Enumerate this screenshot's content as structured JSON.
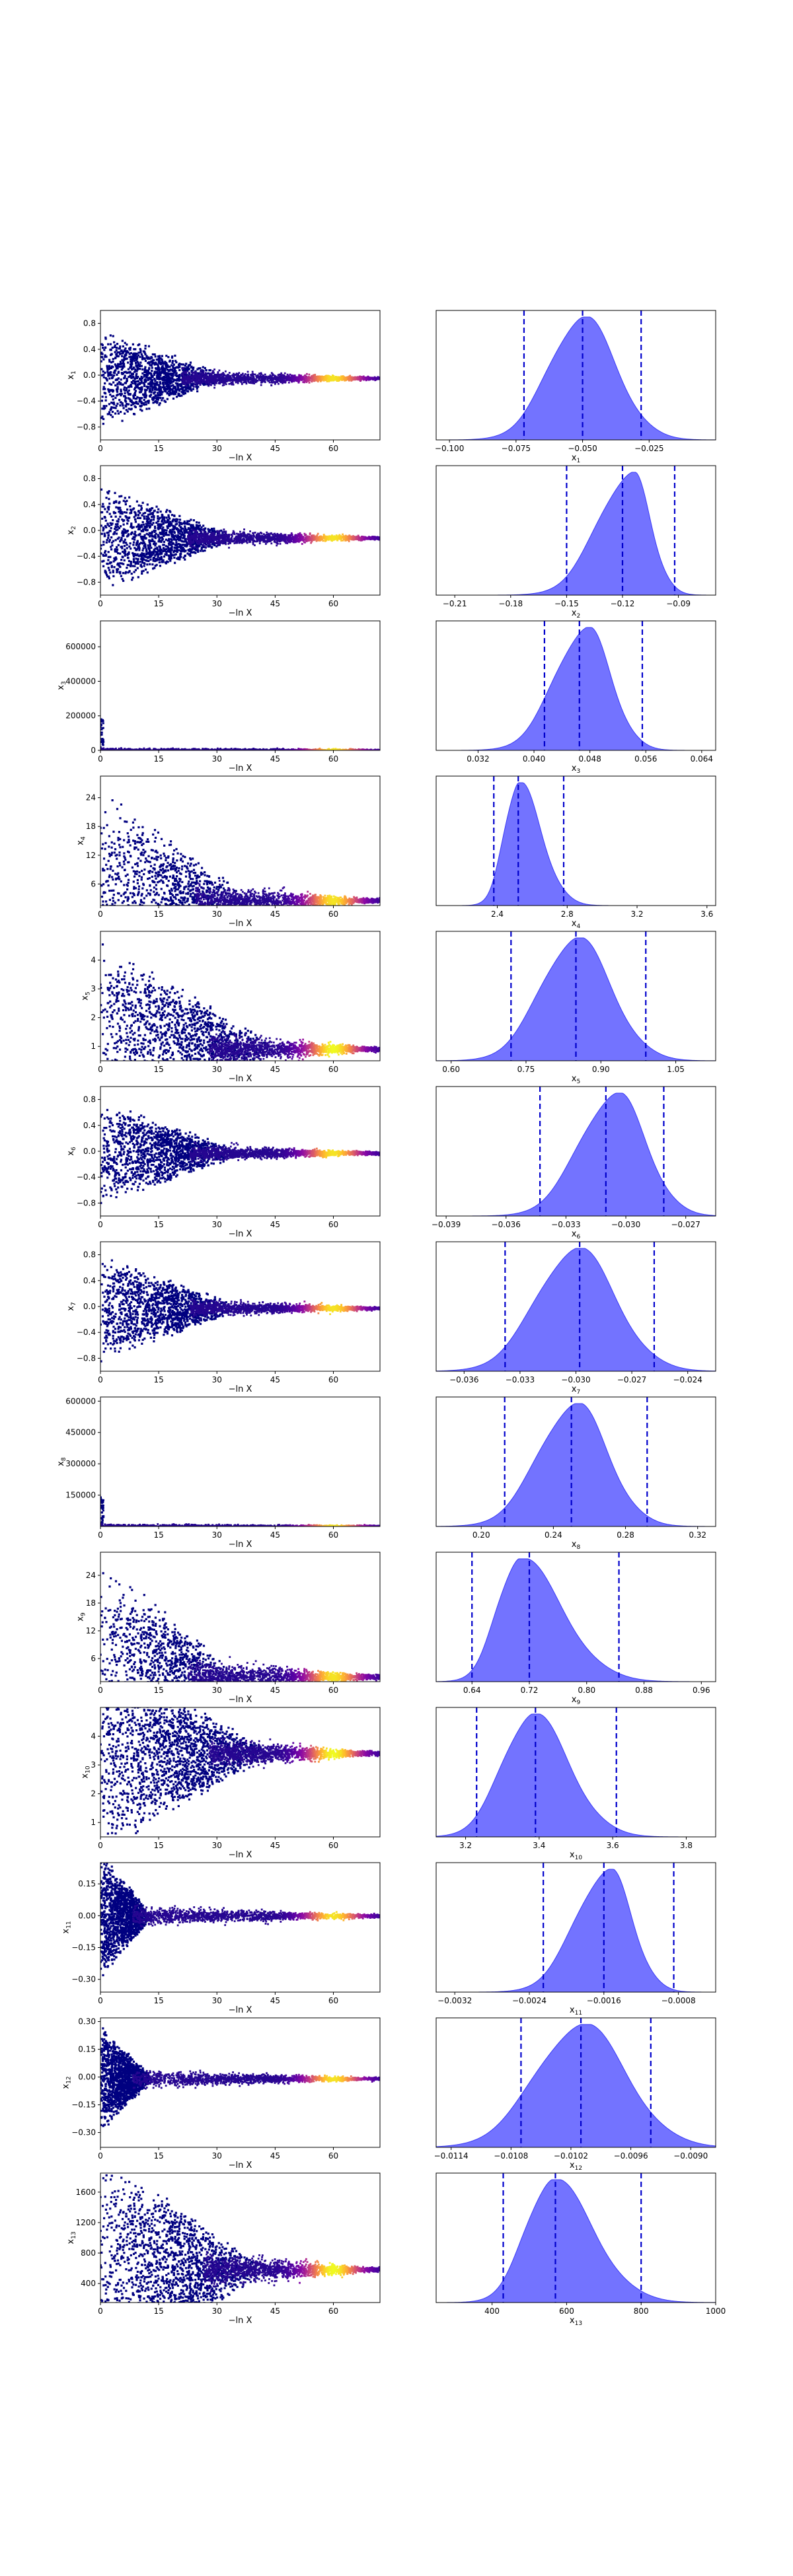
{
  "figure": {
    "type": "dynesty_traceplot"
  },
  "colors": {
    "scatter_base": "#000080",
    "kde_fill": "#5a5aff",
    "kde_edge": "#3a3af5",
    "quantile_line": "#0000cc"
  },
  "chart_data": [
    {
      "param": "x1",
      "ylabel_base": "x",
      "ylabel_sub": "1",
      "trace": {
        "type": "scatter",
        "xlabel": "−ln X",
        "xticks": [
          "0",
          "15",
          "30",
          "45",
          "60"
        ],
        "xlim": [
          0,
          72
        ],
        "ylim": [
          -1.0,
          1.0
        ],
        "yticks": [
          -0.8,
          -0.4,
          0.0,
          0.4,
          0.8
        ],
        "ytick_labels": [
          "−0.8",
          "−0.4",
          "0.0",
          "0.4",
          "0.8"
        ],
        "converged": -0.05,
        "spread": 0.8,
        "noise_end": 30,
        "dense": false
      },
      "posterior": {
        "type": "area",
        "xlabel_base": "x",
        "xlabel_sub": "1",
        "xlim": [
          -0.105,
          0.0
        ],
        "xticks": [
          -0.1,
          -0.075,
          -0.05,
          -0.025
        ],
        "xtick_labels": [
          "−0.100",
          "−0.075",
          "−0.050",
          "−0.025"
        ],
        "peak": -0.05,
        "sigma_left": 0.0125,
        "sigma_right": 0.0125,
        "quantiles": [
          -0.072,
          -0.05,
          -0.028
        ]
      }
    },
    {
      "param": "x2",
      "ylabel_base": "x",
      "ylabel_sub": "2",
      "trace": {
        "type": "scatter",
        "xlabel": "−ln X",
        "xticks": [
          "0",
          "15",
          "30",
          "45",
          "60"
        ],
        "xlim": [
          0,
          72
        ],
        "ylim": [
          -1.0,
          1.0
        ],
        "yticks": [
          -0.8,
          -0.4,
          0.0,
          0.4,
          0.8
        ],
        "ytick_labels": [
          "−0.8",
          "−0.4",
          "0.0",
          "0.4",
          "0.8"
        ],
        "converged": -0.12,
        "spread": 0.85,
        "noise_end": 32,
        "dense": false
      },
      "posterior": {
        "type": "area",
        "xlabel_base": "x",
        "xlabel_sub": "2",
        "xlim": [
          -0.22,
          -0.07
        ],
        "xticks": [
          -0.21,
          -0.18,
          -0.15,
          -0.12,
          -0.09
        ],
        "xtick_labels": [
          "−0.21",
          "−0.18",
          "−0.15",
          "−0.12",
          "−0.09"
        ],
        "peak": -0.115,
        "sigma_left": 0.018,
        "sigma_right": 0.01,
        "quantiles": [
          -0.15,
          -0.12,
          -0.092
        ]
      }
    },
    {
      "param": "x3",
      "ylabel_base": "x",
      "ylabel_sub": "3",
      "trace": {
        "type": "scatter",
        "xlabel": "−ln X",
        "xticks": [
          "0",
          "15",
          "30",
          "45",
          "60"
        ],
        "xlim": [
          0,
          72
        ],
        "ylim": [
          0,
          750000
        ],
        "yticks": [
          0,
          200000,
          400000,
          600000
        ],
        "ytick_labels": [
          "0",
          "200000",
          "400000",
          "600000"
        ],
        "converged": 0.05,
        "spread": 0,
        "noise_end": 1,
        "spike": 180000,
        "dense": false
      },
      "posterior": {
        "type": "area",
        "xlabel_base": "x",
        "xlabel_sub": "3",
        "xlim": [
          0.026,
          0.066
        ],
        "xticks": [
          0.032,
          0.04,
          0.048,
          0.056,
          0.064
        ],
        "xtick_labels": [
          "0.032",
          "0.040",
          "0.048",
          "0.056",
          "0.064"
        ],
        "peak": 0.0475,
        "sigma_left": 0.0045,
        "sigma_right": 0.0035,
        "quantiles": [
          0.0415,
          0.0465,
          0.0555
        ]
      }
    },
    {
      "param": "x4",
      "ylabel_base": "x",
      "ylabel_sub": "4",
      "trace": {
        "type": "scatter",
        "xlabel": "−ln X",
        "xticks": [
          "0",
          "15",
          "30",
          "45",
          "60"
        ],
        "xlim": [
          0,
          72
        ],
        "ylim": [
          1.5,
          28.5
        ],
        "yticks": [
          6,
          12,
          18,
          24
        ],
        "ytick_labels": [
          "6",
          "12",
          "18",
          "24"
        ],
        "converged": 2.5,
        "spread": 24,
        "noise_end": 35,
        "dense": false
      },
      "posterior": {
        "type": "area",
        "xlabel_base": "x",
        "xlabel_sub": "4",
        "xlim": [
          2.05,
          3.65
        ],
        "xticks": [
          2.4,
          2.8,
          3.2,
          3.6
        ],
        "xtick_labels": [
          "2.4",
          "2.8",
          "3.2",
          "3.6"
        ],
        "peak": 2.52,
        "sigma_left": 0.08,
        "sigma_right": 0.13,
        "quantiles": [
          2.38,
          2.52,
          2.78
        ]
      }
    },
    {
      "param": "x5",
      "ylabel_base": "x",
      "ylabel_sub": "5",
      "trace": {
        "type": "scatter",
        "xlabel": "−ln X",
        "xticks": [
          "0",
          "15",
          "30",
          "45",
          "60"
        ],
        "xlim": [
          0,
          72
        ],
        "ylim": [
          0.5,
          5.0
        ],
        "yticks": [
          1,
          2,
          3,
          4
        ],
        "ytick_labels": [
          "1",
          "2",
          "3",
          "4"
        ],
        "converged": 0.9,
        "spread": 4,
        "noise_end": 40,
        "dense": true
      },
      "posterior": {
        "type": "area",
        "xlabel_base": "x",
        "xlabel_sub": "5",
        "xlim": [
          0.57,
          1.13
        ],
        "xticks": [
          0.6,
          0.75,
          0.9,
          1.05
        ],
        "xtick_labels": [
          "0.60",
          "0.75",
          "0.90",
          "1.05"
        ],
        "peak": 0.85,
        "sigma_left": 0.07,
        "sigma_right": 0.07,
        "quantiles": [
          0.72,
          0.85,
          0.99
        ]
      }
    },
    {
      "param": "x6",
      "ylabel_base": "x",
      "ylabel_sub": "6",
      "trace": {
        "type": "scatter",
        "xlabel": "−ln X",
        "xticks": [
          "0",
          "15",
          "30",
          "45",
          "60"
        ],
        "xlim": [
          0,
          72
        ],
        "ylim": [
          -1.0,
          1.0
        ],
        "yticks": [
          -0.8,
          -0.4,
          0.0,
          0.4,
          0.8
        ],
        "ytick_labels": [
          "−0.8",
          "−0.4",
          "0.0",
          "0.4",
          "0.8"
        ],
        "converged": -0.031,
        "spread": 0.85,
        "noise_end": 33,
        "dense": false
      },
      "posterior": {
        "type": "area",
        "xlabel_base": "x",
        "xlabel_sub": "6",
        "xlim": [
          -0.0395,
          -0.0255
        ],
        "xticks": [
          -0.039,
          -0.036,
          -0.033,
          -0.03,
          -0.027
        ],
        "xtick_labels": [
          "−0.039",
          "−0.036",
          "−0.033",
          "−0.030",
          "−0.027"
        ],
        "peak": -0.0305,
        "sigma_left": 0.0018,
        "sigma_right": 0.0015,
        "quantiles": [
          -0.0343,
          -0.031,
          -0.0281
        ]
      }
    },
    {
      "param": "x7",
      "ylabel_base": "x",
      "ylabel_sub": "7",
      "trace": {
        "type": "scatter",
        "xlabel": "−ln X",
        "xticks": [
          "0",
          "15",
          "30",
          "45",
          "60"
        ],
        "xlim": [
          0,
          72
        ],
        "ylim": [
          -1.0,
          1.0
        ],
        "yticks": [
          -0.8,
          -0.4,
          0.0,
          0.4,
          0.8
        ],
        "ytick_labels": [
          "−0.8",
          "−0.4",
          "0.0",
          "0.4",
          "0.8"
        ],
        "converged": -0.03,
        "spread": 0.85,
        "noise_end": 33,
        "dense": false
      },
      "posterior": {
        "type": "area",
        "xlabel_base": "x",
        "xlabel_sub": "7",
        "xlim": [
          -0.0375,
          -0.0225
        ],
        "xticks": [
          -0.036,
          -0.033,
          -0.03,
          -0.027,
          -0.024
        ],
        "xtick_labels": [
          "−0.036",
          "−0.033",
          "−0.030",
          "−0.027",
          "−0.024"
        ],
        "peak": -0.03,
        "sigma_left": 0.0021,
        "sigma_right": 0.0021,
        "quantiles": [
          -0.0338,
          -0.0298,
          -0.0258
        ]
      }
    },
    {
      "param": "x8",
      "ylabel_base": "x",
      "ylabel_sub": "8",
      "trace": {
        "type": "scatter",
        "xlabel": "−ln X",
        "xticks": [
          "0",
          "15",
          "30",
          "45",
          "60"
        ],
        "xlim": [
          0,
          72
        ],
        "ylim": [
          0,
          620000
        ],
        "yticks": [
          150000,
          300000,
          450000,
          600000
        ],
        "ytick_labels": [
          "150000",
          "300000",
          "450000",
          "600000"
        ],
        "converged": 0.25,
        "spread": 0,
        "noise_end": 1,
        "spike": 150000,
        "dense": false
      },
      "posterior": {
        "type": "area",
        "xlabel_base": "x",
        "xlabel_sub": "8",
        "xlim": [
          0.175,
          0.33
        ],
        "xticks": [
          0.2,
          0.24,
          0.28,
          0.32
        ],
        "xtick_labels": [
          "0.20",
          "0.24",
          "0.28",
          "0.32"
        ],
        "peak": 0.252,
        "sigma_left": 0.02,
        "sigma_right": 0.018,
        "quantiles": [
          0.213,
          0.25,
          0.292
        ]
      }
    },
    {
      "param": "x9",
      "ylabel_base": "x",
      "ylabel_sub": "9",
      "trace": {
        "type": "scatter",
        "xlabel": "−ln X",
        "xticks": [
          "0",
          "15",
          "30",
          "45",
          "60"
        ],
        "xlim": [
          0,
          72
        ],
        "ylim": [
          1.0,
          29.0
        ],
        "yticks": [
          6,
          12,
          18,
          24
        ],
        "ytick_labels": [
          "6",
          "12",
          "18",
          "24"
        ],
        "converged": 2.0,
        "spread": 26,
        "noise_end": 32,
        "dense": false
      },
      "posterior": {
        "type": "area",
        "xlabel_base": "x",
        "xlabel_sub": "9",
        "xlim": [
          0.59,
          0.98
        ],
        "xticks": [
          0.64,
          0.72,
          0.8,
          0.88,
          0.96
        ],
        "xtick_labels": [
          "0.64",
          "0.72",
          "0.80",
          "0.88",
          "0.96"
        ],
        "peak": 0.705,
        "sigma_left": 0.03,
        "sigma_right": 0.06,
        "quantiles": [
          0.64,
          0.72,
          0.845
        ]
      }
    },
    {
      "param": "x10",
      "ylabel_base": "x",
      "ylabel_sub": "10",
      "trace": {
        "type": "scatter",
        "xlabel": "−ln X",
        "xticks": [
          "0",
          "15",
          "30",
          "45",
          "60"
        ],
        "xlim": [
          0,
          72
        ],
        "ylim": [
          0.5,
          5.0
        ],
        "yticks": [
          1,
          2,
          3,
          4
        ],
        "ytick_labels": [
          "1",
          "2",
          "3",
          "4"
        ],
        "converged": 3.4,
        "spread": 3.5,
        "noise_end": 40,
        "dense": true
      },
      "posterior": {
        "type": "area",
        "xlabel_base": "x",
        "xlabel_sub": "10",
        "xlim": [
          3.12,
          3.88
        ],
        "xticks": [
          3.2,
          3.4,
          3.6,
          3.8
        ],
        "xtick_labels": [
          "3.2",
          "3.4",
          "3.6",
          "3.8"
        ],
        "peak": 3.38,
        "sigma_left": 0.08,
        "sigma_right": 0.1,
        "quantiles": [
          3.23,
          3.39,
          3.61
        ]
      }
    },
    {
      "param": "x11",
      "ylabel_base": "x",
      "ylabel_sub": "11",
      "trace": {
        "type": "scatter",
        "xlabel": "−ln X",
        "xticks": [
          "0",
          "15",
          "30",
          "45",
          "60"
        ],
        "xlim": [
          0,
          72
        ],
        "ylim": [
          -0.36,
          0.25
        ],
        "yticks": [
          -0.3,
          -0.15,
          0.0,
          0.15
        ],
        "ytick_labels": [
          "−0.30",
          "−0.15",
          "0.00",
          "0.15"
        ],
        "converged": -0.0017,
        "spread": 0.3,
        "noise_end": 12,
        "dense": false
      },
      "posterior": {
        "type": "area",
        "xlabel_base": "x",
        "xlabel_sub": "11",
        "xlim": [
          -0.0034,
          -0.0004
        ],
        "xticks": [
          -0.0032,
          -0.0024,
          -0.0016,
          -0.0008
        ],
        "xtick_labels": [
          "−0.0032",
          "−0.0024",
          "−0.0016",
          "−0.0008"
        ],
        "peak": -0.00155,
        "sigma_left": 0.00035,
        "sigma_right": 0.00025,
        "quantiles": [
          -0.00225,
          -0.0016,
          -0.00085
        ]
      }
    },
    {
      "param": "x12",
      "ylabel_base": "x",
      "ylabel_sub": "12",
      "trace": {
        "type": "scatter",
        "xlabel": "−ln X",
        "xticks": [
          "0",
          "15",
          "30",
          "45",
          "60"
        ],
        "xlim": [
          0,
          72
        ],
        "ylim": [
          -0.38,
          0.32
        ],
        "yticks": [
          -0.3,
          -0.15,
          0.0,
          0.15,
          0.3
        ],
        "ytick_labels": [
          "−0.30",
          "−0.15",
          "0.00",
          "0.15",
          "0.30"
        ],
        "converged": -0.0101,
        "spread": 0.3,
        "noise_end": 12,
        "dense": false
      },
      "posterior": {
        "type": "area",
        "xlabel_base": "x",
        "xlabel_sub": "12",
        "xlim": [
          -0.01155,
          -0.00875
        ],
        "xticks": [
          -0.0114,
          -0.0108,
          -0.0102,
          -0.0096,
          -0.009
        ],
        "xtick_labels": [
          "−0.0114",
          "−0.0108",
          "−0.0102",
          "−0.0096",
          "−0.0090"
        ],
        "peak": -0.0101,
        "sigma_left": 0.00045,
        "sigma_right": 0.00045,
        "quantiles": [
          -0.0107,
          -0.0101,
          -0.0094
        ]
      }
    },
    {
      "param": "x13",
      "ylabel_base": "x",
      "ylabel_sub": "13",
      "trace": {
        "type": "scatter",
        "xlabel": "−ln X",
        "xticks": [
          "0",
          "15",
          "30",
          "45",
          "60"
        ],
        "xlim": [
          0,
          72
        ],
        "ylim": [
          150,
          1850
        ],
        "yticks": [
          400,
          800,
          1200,
          1600
        ],
        "ytick_labels": [
          "400",
          "800",
          "1200",
          "1600"
        ],
        "converged": 580,
        "spread": 1600,
        "noise_end": 38,
        "dense": true
      },
      "posterior": {
        "type": "area",
        "xlabel_base": "x",
        "xlabel_sub": "13",
        "xlim": [
          250,
          1000
        ],
        "xticks": [
          400,
          600,
          800,
          1000
        ],
        "xtick_labels": [
          "400",
          "600",
          "800",
          "1000"
        ],
        "peak": 560,
        "sigma_left": 70,
        "sigma_right": 110,
        "quantiles": [
          430,
          570,
          800
        ]
      }
    }
  ]
}
